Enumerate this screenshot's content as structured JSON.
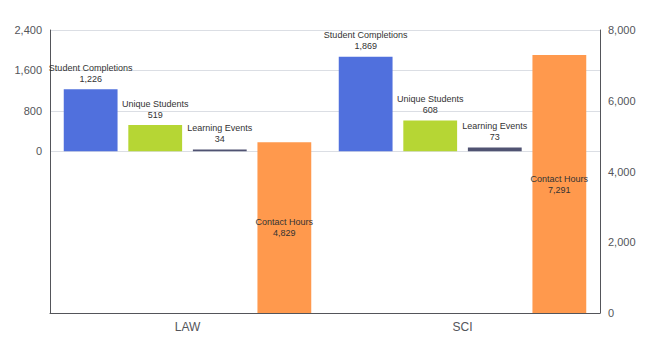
{
  "chart_data": {
    "type": "bar",
    "categories": [
      "LAW",
      "SCI"
    ],
    "series": [
      {
        "name": "Student Completions",
        "values": [
          1226,
          1869
        ],
        "value_labels": [
          "1,226",
          "1,869"
        ]
      },
      {
        "name": "Unique Students",
        "values": [
          519,
          608
        ]
      },
      {
        "name": "Learning Events",
        "values": [
          34,
          73
        ]
      },
      {
        "name": "Contact Hours",
        "values": [
          4829,
          7291
        ],
        "value_labels": [
          "4,829",
          "7,291"
        ],
        "axis": "y2"
      }
    ],
    "ylim": [
      -3200,
      2400
    ],
    "yticks": [
      0,
      800,
      1600,
      2400
    ],
    "y2lim": [
      0,
      8000
    ],
    "y2ticks": [
      0,
      2000,
      4000,
      6000,
      8000
    ],
    "grid": true,
    "data_labels": true
  }
}
